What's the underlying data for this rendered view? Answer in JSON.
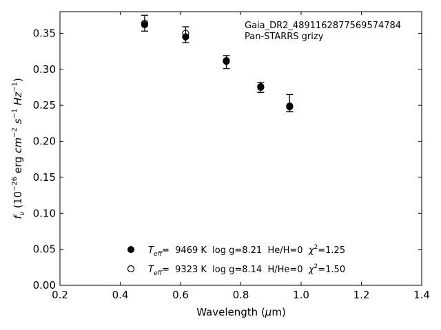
{
  "chart_data": {
    "type": "scatter",
    "annotation": [
      "Gaia_DR2_4891162877569574784",
      "Pan-STARRS grizy"
    ],
    "xlabel": {
      "pre": "Wavelength (",
      "mu": "μ",
      "post": "m)"
    },
    "ylabel": {
      "f": "f",
      "nu": "ν",
      "rest1": " (10",
      "exp26": "−26",
      "rest2": " erg ",
      "cm": "cm",
      "expm2": "−2",
      "s": " s",
      "expm1a": "−1",
      "hz": " Hz",
      "expm1b": "−1",
      "close": ")"
    },
    "xlim": [
      0.2,
      1.4
    ],
    "ylim": [
      0.0,
      0.38
    ],
    "xticks": [
      0.2,
      0.4,
      0.6,
      0.8,
      1.0,
      1.2,
      1.4
    ],
    "xtick_labels": [
      "0.2",
      "0.4",
      "0.6",
      "0.8",
      "1.0",
      "1.2",
      "1.4"
    ],
    "yticks": [
      0.0,
      0.05,
      0.1,
      0.15,
      0.2,
      0.25,
      0.3,
      0.35
    ],
    "ytick_labels": [
      "0.00",
      "0.05",
      "0.10",
      "0.15",
      "0.20",
      "0.25",
      "0.30",
      "0.35"
    ],
    "observed": {
      "x": [
        0.481,
        0.617,
        0.752,
        0.866,
        0.962
      ],
      "y": [
        0.364,
        0.348,
        0.31,
        0.275,
        0.253
      ],
      "yerr": [
        0.011,
        0.011,
        0.009,
        0.007,
        0.012
      ]
    },
    "series": [
      {
        "marker": "filled",
        "legend": {
          "pre": "T",
          "sub": "eff",
          "mid": "=  9469 K  log g=8.21  He/H=0  ",
          "chi": "χ",
          "sup": "2",
          "post": "=1.25"
        },
        "x": [
          0.481,
          0.617,
          0.752,
          0.866,
          0.962
        ],
        "y": [
          0.362,
          0.345,
          0.311,
          0.275,
          0.248
        ]
      },
      {
        "marker": "open",
        "legend": {
          "pre": "T",
          "sub": "eff",
          "mid": "=  9323 K  log g=8.14  H/He=0  ",
          "chi": "χ",
          "sup": "2",
          "post": "=1.50"
        },
        "x": [
          0.481,
          0.617,
          0.752,
          0.866,
          0.962
        ],
        "y": [
          0.364,
          0.35,
          0.312,
          0.276,
          0.249
        ]
      }
    ],
    "legend_position": "lower-center",
    "grid": false
  }
}
